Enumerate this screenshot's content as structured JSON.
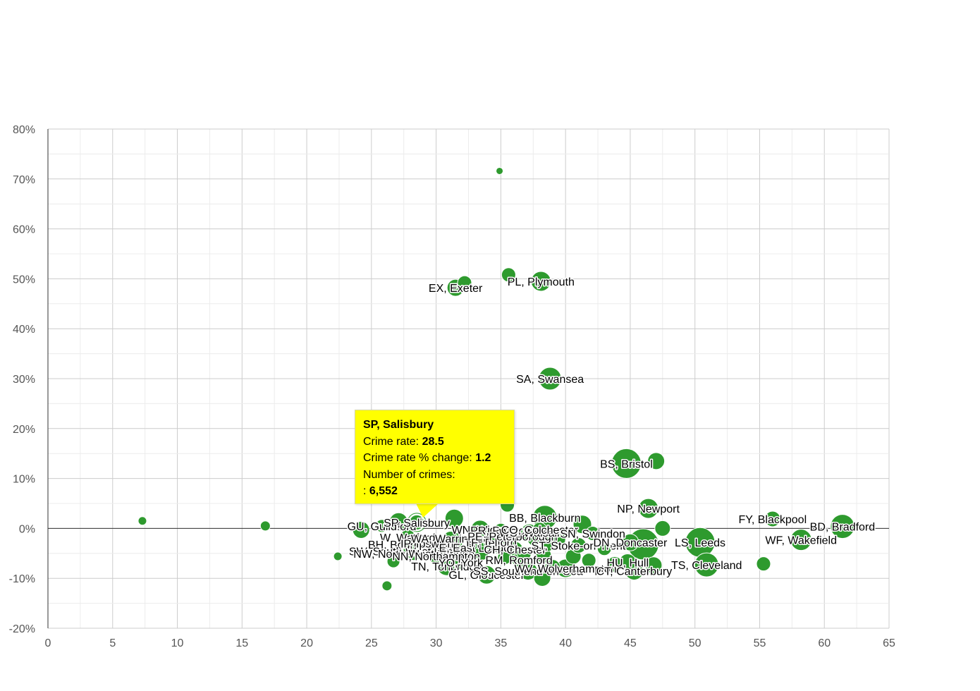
{
  "chart_data": {
    "type": "scatter",
    "title": "",
    "xlabel": "",
    "ylabel": "",
    "xlim": [
      0,
      65
    ],
    "ylim": [
      -20,
      80
    ],
    "x_ticks": [
      0,
      5,
      10,
      15,
      20,
      25,
      30,
      35,
      40,
      45,
      50,
      55,
      60,
      65
    ],
    "y_ticks": [
      -20,
      -10,
      0,
      10,
      20,
      30,
      40,
      50,
      60,
      70,
      80
    ],
    "y_tick_suffix": "%",
    "grid": true,
    "bubble_color": "#2e9a2e",
    "highlight_color": "#2e9a2e",
    "series": [
      {
        "points": [
          {
            "x": 7.3,
            "y": 1.5,
            "size": 6
          },
          {
            "x": 16.8,
            "y": 0.5,
            "size": 7
          },
          {
            "x": 22.4,
            "y": -5.6,
            "size": 6
          },
          {
            "x": 26.2,
            "y": -11.5,
            "size": 7
          },
          {
            "x": 34.9,
            "y": 71.6,
            "size": 5
          },
          {
            "x": 24.2,
            "y": -0.3,
            "size": 12
          },
          {
            "x": 25.8,
            "y": 0.5,
            "size": 9,
            "label": "GU, Guildford"
          },
          {
            "x": 26.7,
            "y": -6.6,
            "size": 9
          },
          {
            "x": 27.1,
            "y": 1.3,
            "size": 13
          },
          {
            "x": 27.8,
            "y": -1.8,
            "size": 11,
            "label": "W, Watford"
          },
          {
            "x": 28.2,
            "y": -3.2,
            "size": 11,
            "label": "BH, Bournemouth"
          },
          {
            "x": 28.0,
            "y": -4.5,
            "size": 10,
            "label": "SW, South West London"
          },
          {
            "x": 28.3,
            "y": -5.0,
            "size": 10,
            "label": "NW, North West London"
          },
          {
            "x": 28.5,
            "y": 1.2,
            "size": 11,
            "label": "SP, Salisbury",
            "highlight": true
          },
          {
            "x": 29.3,
            "y": -3.0,
            "size": 9,
            "label": "IP, Ipswich"
          },
          {
            "x": 30.0,
            "y": -5.5,
            "size": 11,
            "label": "NN, Northampton"
          },
          {
            "x": 30.4,
            "y": -4.0,
            "size": 10
          },
          {
            "x": 30.8,
            "y": -7.6,
            "size": 13,
            "label": "TN, Tonbridge"
          },
          {
            "x": 31.1,
            "y": -2.0,
            "size": 10,
            "label": "WA, Warrington"
          },
          {
            "x": 31.4,
            "y": 2.0,
            "size": 13
          },
          {
            "x": 31.5,
            "y": -2.4,
            "size": 11
          },
          {
            "x": 31.5,
            "y": 48.2,
            "size": 12,
            "label": "EX, Exeter"
          },
          {
            "x": 31.9,
            "y": -6.8,
            "size": 10,
            "label": "YO, York"
          },
          {
            "x": 32.2,
            "y": 49.2,
            "size": 10
          },
          {
            "x": 32.3,
            "y": -5.4,
            "size": 10
          },
          {
            "x": 33.2,
            "y": -3.8,
            "size": 11,
            "label": "E, East London"
          },
          {
            "x": 33.4,
            "y": -0.2,
            "size": 13,
            "label": "WN, Wigan"
          },
          {
            "x": 33.5,
            "y": -5.0,
            "size": 10
          },
          {
            "x": 33.9,
            "y": -9.3,
            "size": 13,
            "label": "GL, Gloucester"
          },
          {
            "x": 34.2,
            "y": -2.8,
            "size": 10,
            "label": "TF, Telford"
          },
          {
            "x": 34.8,
            "y": -3.5,
            "size": 11
          },
          {
            "x": 35.0,
            "y": -0.4,
            "size": 10,
            "label": "PR, Preston"
          },
          {
            "x": 35.3,
            "y": -5.8,
            "size": 10
          },
          {
            "x": 35.5,
            "y": 4.7,
            "size": 10
          },
          {
            "x": 35.6,
            "y": 50.8,
            "size": 10
          },
          {
            "x": 35.9,
            "y": -1.6,
            "size": 11,
            "label": "PE, Peterborough"
          },
          {
            "x": 36.1,
            "y": -4.2,
            "size": 11,
            "label": "CH, Chester"
          },
          {
            "x": 36.4,
            "y": -6.3,
            "size": 10,
            "label": "RM, Romford"
          },
          {
            "x": 36.8,
            "y": -5.0,
            "size": 10
          },
          {
            "x": 37.1,
            "y": -8.5,
            "size": 13,
            "label": "SS, Southend-on-Sea"
          },
          {
            "x": 37.2,
            "y": -0.8,
            "size": 12,
            "label": "WS, Walsall"
          },
          {
            "x": 37.6,
            "y": -2.1,
            "size": 10
          },
          {
            "x": 38.0,
            "y": -0.2,
            "size": 10,
            "label": "CO, Colchester"
          },
          {
            "x": 38.1,
            "y": 49.5,
            "size": 14,
            "label": "PL, Plymouth"
          },
          {
            "x": 38.2,
            "y": -9.9,
            "size": 12
          },
          {
            "x": 38.3,
            "y": -5.4,
            "size": 11
          },
          {
            "x": 38.4,
            "y": 2.2,
            "size": 17,
            "label": "BB, Blackburn"
          },
          {
            "x": 38.6,
            "y": -3.2,
            "size": 10
          },
          {
            "x": 38.8,
            "y": 30.0,
            "size": 16,
            "label": "SA, Swansea"
          },
          {
            "x": 39.0,
            "y": -7.8,
            "size": 11
          },
          {
            "x": 39.4,
            "y": -2.2,
            "size": 11
          },
          {
            "x": 40.0,
            "y": -8.0,
            "size": 13,
            "label": "WV, Wolverhampton"
          },
          {
            "x": 40.6,
            "y": -5.6,
            "size": 11
          },
          {
            "x": 41.0,
            "y": -3.4,
            "size": 11,
            "label": "ST, Stoke-on-Trent"
          },
          {
            "x": 41.3,
            "y": 0.8,
            "size": 13
          },
          {
            "x": 41.8,
            "y": -6.4,
            "size": 10
          },
          {
            "x": 42.1,
            "y": -1.0,
            "size": 10,
            "label": "SN, Swindon"
          },
          {
            "x": 43.0,
            "y": -4.0,
            "size": 10
          },
          {
            "x": 43.8,
            "y": -7.2,
            "size": 11
          },
          {
            "x": 44.7,
            "y": 13.0,
            "size": 21,
            "label": "BS, Bristol"
          },
          {
            "x": 44.8,
            "y": -6.8,
            "size": 12,
            "label": "HU, Hull"
          },
          {
            "x": 45.0,
            "y": -2.8,
            "size": 12,
            "label": "DN, Doncaster"
          },
          {
            "x": 45.3,
            "y": -8.5,
            "size": 13,
            "label": "CT, Canterbury"
          },
          {
            "x": 46.0,
            "y": -3.2,
            "size": 22
          },
          {
            "x": 46.4,
            "y": 4.0,
            "size": 14,
            "label": "NP, Newport"
          },
          {
            "x": 46.8,
            "y": -7.4,
            "size": 12
          },
          {
            "x": 47.0,
            "y": 13.5,
            "size": 12
          },
          {
            "x": 47.5,
            "y": 0.0,
            "size": 11
          },
          {
            "x": 50.4,
            "y": -2.8,
            "size": 21,
            "label": "LS, Leeds"
          },
          {
            "x": 50.9,
            "y": -7.3,
            "size": 17,
            "label": "TS, Cleveland"
          },
          {
            "x": 55.3,
            "y": -7.1,
            "size": 10
          },
          {
            "x": 56.0,
            "y": 1.9,
            "size": 11,
            "label": "FY, Blackpool"
          },
          {
            "x": 58.2,
            "y": -2.3,
            "size": 15,
            "label": "WF, Wakefield"
          },
          {
            "x": 61.4,
            "y": 0.4,
            "size": 17,
            "label": "BD, Bradford"
          }
        ]
      }
    ]
  },
  "tooltip": {
    "title": "SP, Salisbury",
    "line1_label": "Crime rate: ",
    "line1_value": "28.5",
    "line2_label": "Crime rate % change: ",
    "line2_value": "1.2",
    "line3_label": "Number of crimes:",
    "line4_label": ": ",
    "line4_value": "6,552"
  }
}
